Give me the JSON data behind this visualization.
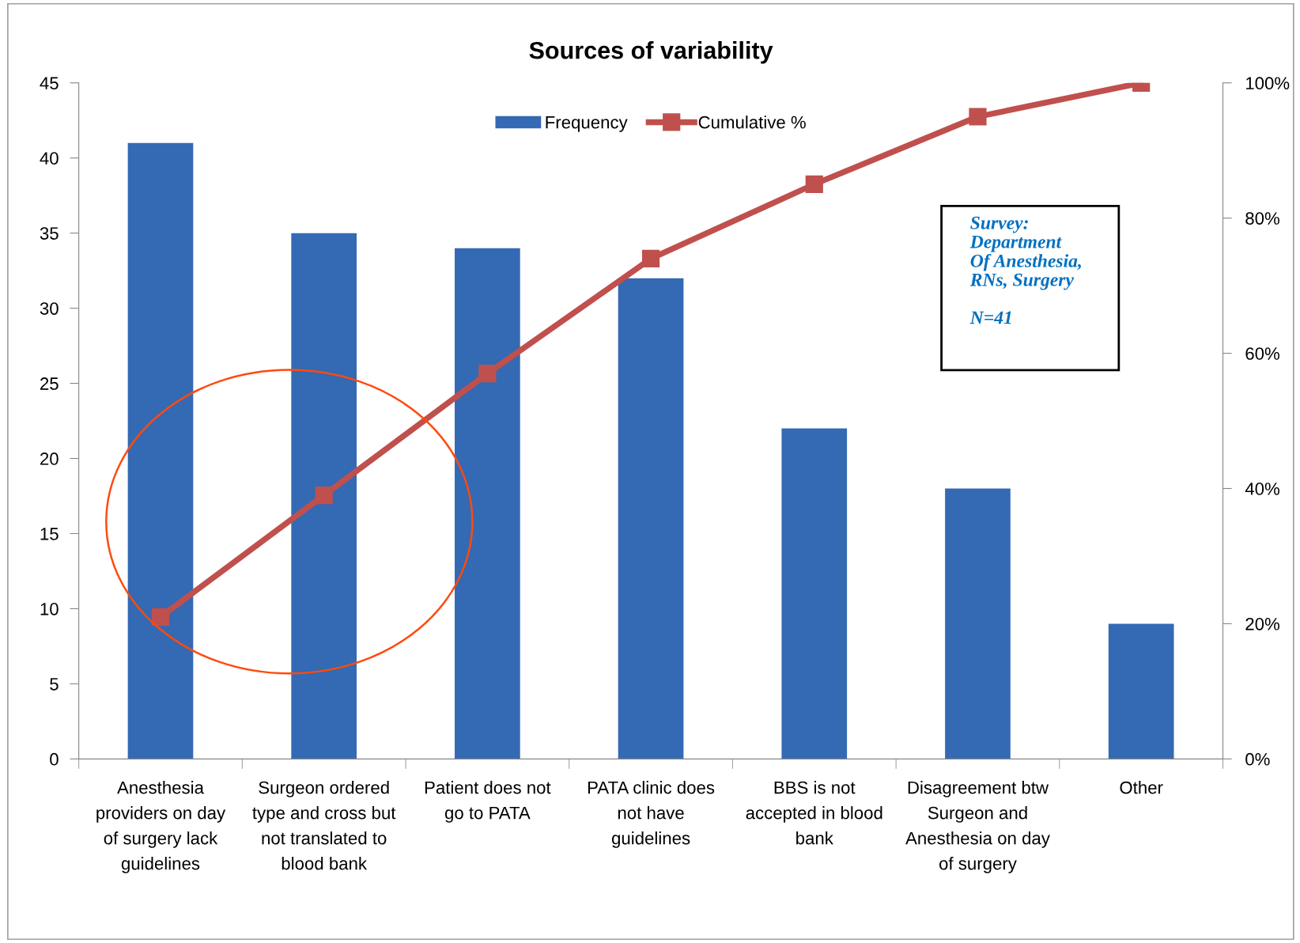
{
  "chart_data": {
    "type": "bar",
    "title": "Sources of variability",
    "categories": [
      "Anesthesia\nproviders on day\nof surgery lack\nguidelines",
      "Surgeon ordered\ntype and cross but\nnot translated to\nblood bank",
      "Patient does not\ngo to PATA",
      "PATA clinic does\nnot have\nguidelines",
      "BBS is not\naccepted in blood\nbank",
      "Disagreement btw\nSurgeon and\nAnesthesia on day\nof surgery",
      "Other"
    ],
    "series": [
      {
        "name": "Frequency",
        "color": "#3469b3",
        "values": [
          41,
          35,
          34,
          32,
          22,
          18,
          9
        ]
      },
      {
        "name": "Cumulative %",
        "type": "line",
        "axis": "y2",
        "color": "#c0504d",
        "marker": "square",
        "values": [
          21,
          39,
          57,
          74,
          85,
          95,
          100
        ]
      }
    ],
    "ylim": [
      0,
      45
    ],
    "yticks": [
      0,
      5,
      10,
      15,
      20,
      25,
      30,
      35,
      40,
      45
    ],
    "y2lim": [
      0,
      100
    ],
    "y2ticks": [
      {
        "value": 0,
        "label": "0%"
      },
      {
        "value": 20,
        "label": "20%"
      },
      {
        "value": 40,
        "label": "40%"
      },
      {
        "value": 60,
        "label": "60%"
      },
      {
        "value": 80,
        "label": "80%"
      },
      {
        "value": 100,
        "label": "100%"
      }
    ],
    "legend": "top",
    "annotations": [
      "Survey:\nDepartment\nOf Anesthesia,\nRNs, Surgery\n\nN=41"
    ]
  }
}
